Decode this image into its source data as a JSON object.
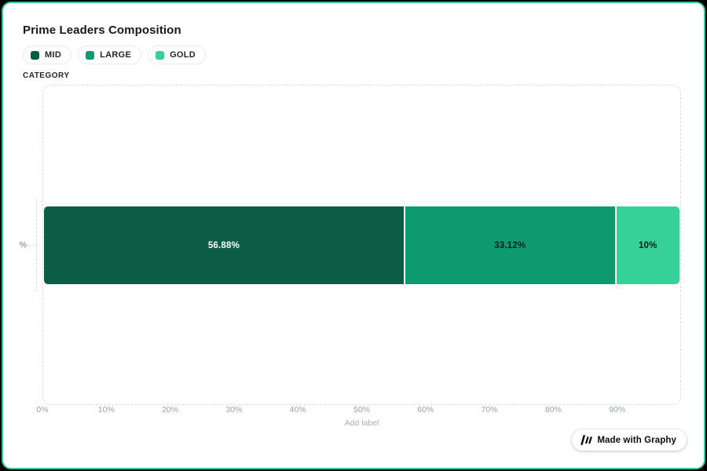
{
  "title": "Prime Leaders Composition",
  "legend": {
    "items": [
      {
        "label": "MID",
        "color": "#0b5d45"
      },
      {
        "label": "LARGE",
        "color": "#0d9a6c"
      },
      {
        "label": "GOLD",
        "color": "#35d199"
      }
    ]
  },
  "axis": {
    "category_label": "CATEGORY",
    "y_label": "%",
    "x_ticks": [
      "0%",
      "10%",
      "20%",
      "30%",
      "40%",
      "50%",
      "60%",
      "70%",
      "80%",
      "90%"
    ],
    "add_label": "Add label"
  },
  "chart_data": {
    "type": "bar",
    "orientation": "horizontal-stacked",
    "title": "Prime Leaders Composition",
    "categories": [
      "%"
    ],
    "series": [
      {
        "name": "MID",
        "values": [
          56.88
        ],
        "label": "56.88%",
        "color": "#0b5d45",
        "label_color": "#ffffff"
      },
      {
        "name": "LARGE",
        "values": [
          33.12
        ],
        "label": "33.12%",
        "color": "#0d9a6c",
        "label_color": "#0c211a"
      },
      {
        "name": "GOLD",
        "values": [
          10
        ],
        "label": "10%",
        "color": "#35d199",
        "label_color": "#0c211a"
      }
    ],
    "xlim": [
      0,
      100
    ],
    "x_tick_step": 10,
    "legend_position": "top-left",
    "grid": false,
    "plot_border": "dashed"
  },
  "badge": {
    "label": "Made with Graphy"
  },
  "colors": {
    "card_border": "#36c5a0",
    "dashed_border": "#d9dce0",
    "tick_text": "#9aa1a8"
  }
}
